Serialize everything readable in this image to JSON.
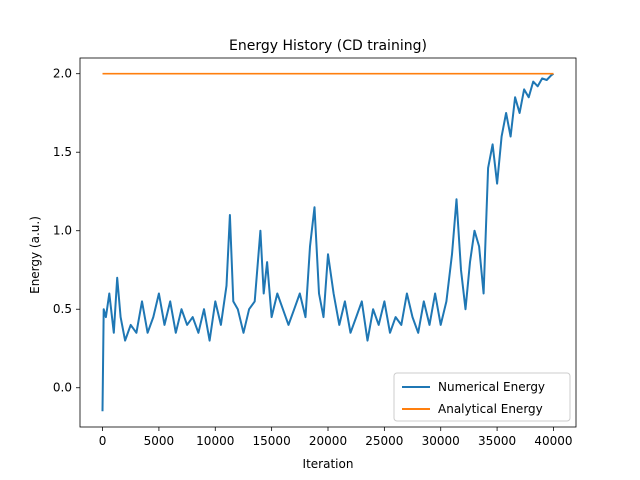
{
  "chart_data": {
    "type": "line",
    "title": "Energy History (CD training)",
    "xlabel": "Iteration",
    "ylabel": "Energy (a.u.)",
    "xlim": [
      -2000,
      42000
    ],
    "ylim": [
      -0.25,
      2.1
    ],
    "xticks": [
      0,
      5000,
      10000,
      15000,
      20000,
      25000,
      30000,
      35000,
      40000
    ],
    "yticks": [
      0.0,
      0.5,
      1.0,
      1.5,
      2.0
    ],
    "xtick_labels": [
      "0",
      "5000",
      "10000",
      "15000",
      "20000",
      "25000",
      "30000",
      "35000",
      "40000"
    ],
    "ytick_labels": [
      "0.0",
      "0.5",
      "1.0",
      "1.5",
      "2.0"
    ],
    "grid": false,
    "legend_position": "bottom-right",
    "series": [
      {
        "name": "Numerical Energy",
        "color": "#1f77b4",
        "x": [
          0,
          100,
          300,
          600,
          1000,
          1300,
          1600,
          2000,
          2500,
          3000,
          3500,
          4000,
          4500,
          5000,
          5500,
          6000,
          6500,
          7000,
          7500,
          8000,
          8500,
          9000,
          9500,
          10000,
          10500,
          11000,
          11300,
          11600,
          12000,
          12500,
          13000,
          13500,
          14000,
          14300,
          14600,
          15000,
          15500,
          16000,
          16500,
          17000,
          17500,
          18000,
          18400,
          18800,
          19200,
          19600,
          20000,
          20500,
          21000,
          21500,
          22000,
          22500,
          23000,
          23500,
          24000,
          24500,
          25000,
          25500,
          26000,
          26500,
          27000,
          27500,
          28000,
          28500,
          29000,
          29500,
          30000,
          30500,
          31000,
          31400,
          31800,
          32200,
          32600,
          33000,
          33400,
          33800,
          34200,
          34600,
          35000,
          35400,
          35800,
          36200,
          36600,
          37000,
          37400,
          37800,
          38200,
          38600,
          39000,
          39400,
          39800,
          40000
        ],
        "values": [
          -0.15,
          0.5,
          0.45,
          0.6,
          0.35,
          0.7,
          0.45,
          0.3,
          0.4,
          0.35,
          0.55,
          0.35,
          0.45,
          0.6,
          0.4,
          0.55,
          0.35,
          0.5,
          0.4,
          0.45,
          0.35,
          0.5,
          0.3,
          0.55,
          0.4,
          0.65,
          1.1,
          0.55,
          0.5,
          0.35,
          0.5,
          0.55,
          1.0,
          0.6,
          0.8,
          0.45,
          0.6,
          0.5,
          0.4,
          0.5,
          0.6,
          0.45,
          0.9,
          1.15,
          0.6,
          0.45,
          0.85,
          0.6,
          0.4,
          0.55,
          0.35,
          0.45,
          0.55,
          0.3,
          0.5,
          0.4,
          0.55,
          0.35,
          0.45,
          0.4,
          0.6,
          0.45,
          0.35,
          0.55,
          0.4,
          0.6,
          0.4,
          0.55,
          0.85,
          1.2,
          0.75,
          0.5,
          0.8,
          1.0,
          0.9,
          0.6,
          1.4,
          1.55,
          1.3,
          1.6,
          1.75,
          1.6,
          1.85,
          1.75,
          1.9,
          1.85,
          1.95,
          1.92,
          1.97,
          1.96,
          1.99,
          2.0
        ]
      },
      {
        "name": "Analytical Energy",
        "color": "#ff7f0e",
        "x": [
          0,
          40000
        ],
        "values": [
          2.0,
          2.0
        ]
      }
    ]
  }
}
